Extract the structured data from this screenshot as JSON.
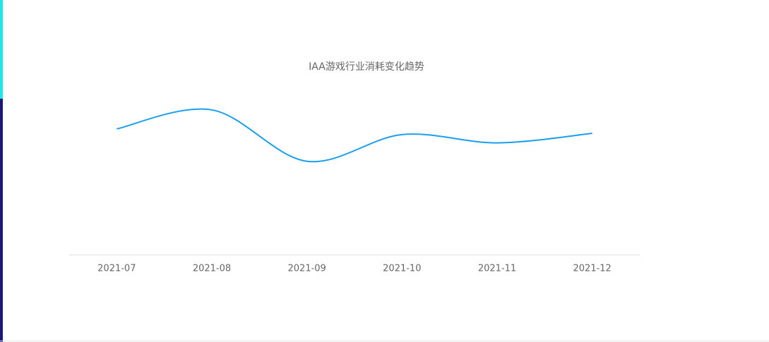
{
  "chart_data": {
    "type": "line",
    "title": "IAA游戏行业消耗变化趋势",
    "categories": [
      "2021-07",
      "2021-08",
      "2021-09",
      "2021-10",
      "2021-11",
      "2021-12"
    ],
    "series": [
      {
        "color": "#1a9ff0",
        "values": [
          198,
          228,
          147,
          189,
          176,
          191
        ]
      }
    ],
    "ylim": [
      0,
      250
    ],
    "smooth": true
  }
}
